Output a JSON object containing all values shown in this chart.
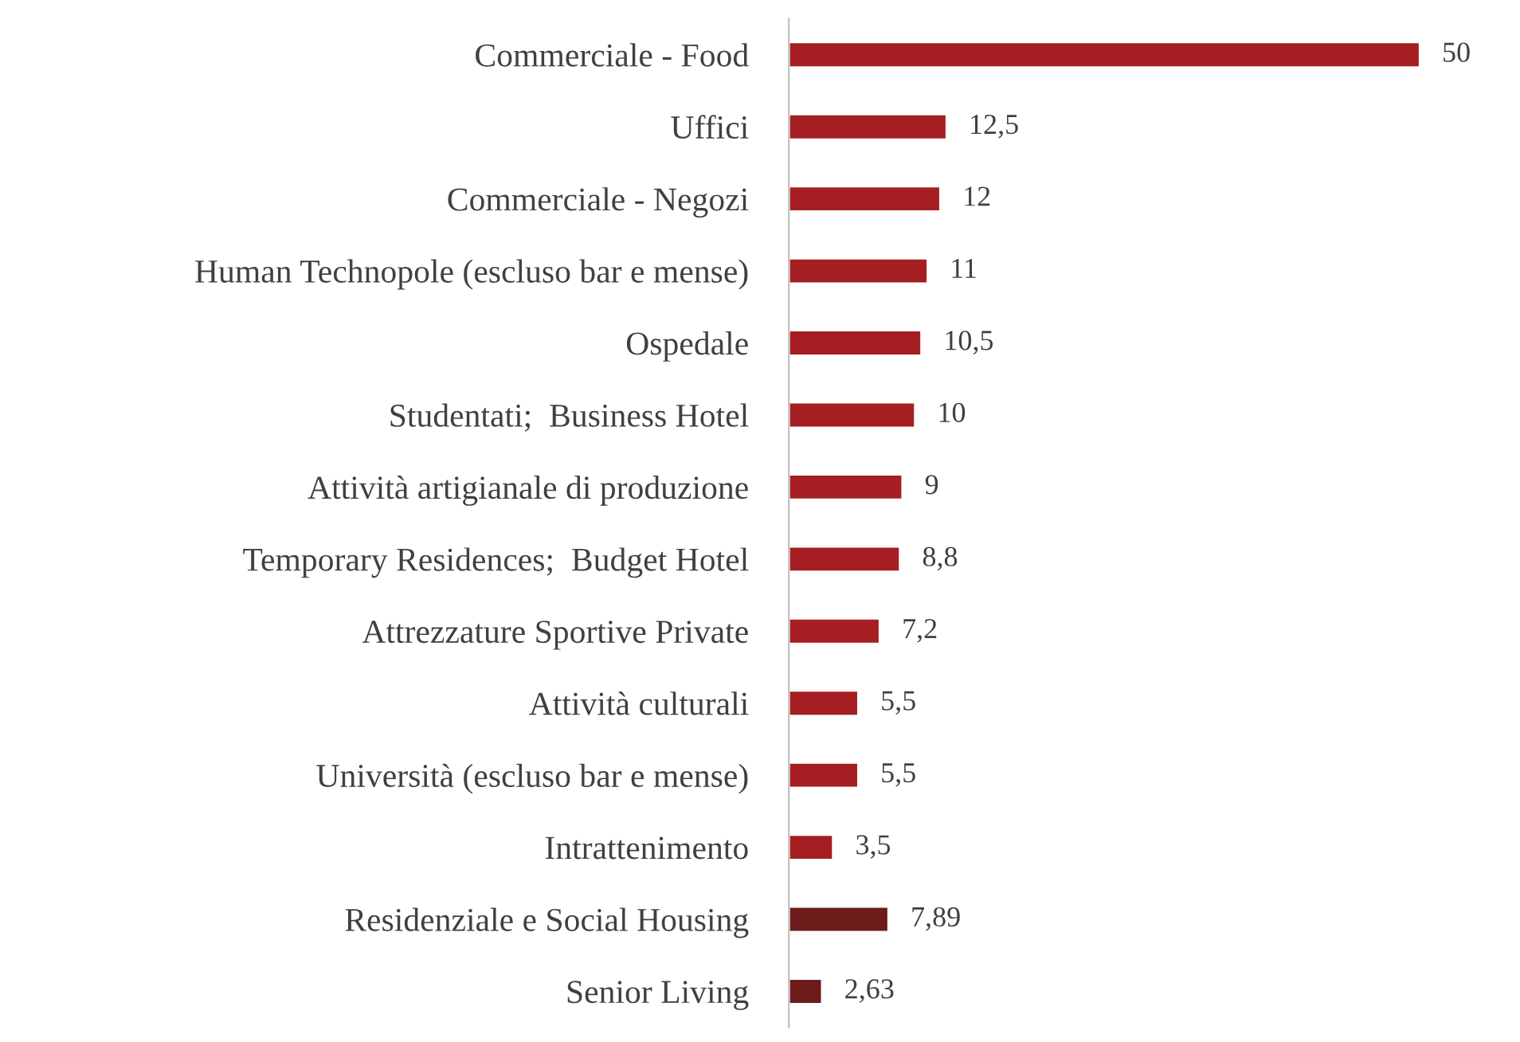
{
  "chart_data": {
    "type": "bar",
    "orientation": "horizontal",
    "categories": [
      "Commerciale - Food",
      "Uffici",
      "Commerciale - Negozi",
      "Human Technopole (escluso bar e mense)",
      "Ospedale",
      "Studentati;  Business Hotel",
      "Attività artigianale di produzione",
      "Temporary Residences;  Budget Hotel",
      "Attrezzature Sportive Private",
      "Attività culturali",
      "Università (escluso bar e mense)",
      "Intrattenimento",
      "Residenziale e Social Housing",
      "Senior Living"
    ],
    "values": [
      50,
      12.5,
      12,
      11,
      10.5,
      10,
      9,
      8.8,
      7.2,
      5.5,
      5.5,
      3.5,
      7.89,
      2.63
    ],
    "value_labels": [
      "50",
      "12,5",
      "12",
      "11",
      "10,5",
      "10",
      "9",
      "8,8",
      "7,2",
      "5,5",
      "5,5",
      "3,5",
      "7,89",
      "2,63"
    ],
    "colors": [
      "#a51e22",
      "#a51e22",
      "#a51e22",
      "#a51e22",
      "#a51e22",
      "#a51e22",
      "#a51e22",
      "#a51e22",
      "#a51e22",
      "#a51e22",
      "#a51e22",
      "#a51e22",
      "#6e1b1b",
      "#6e1b1b"
    ],
    "grid": false,
    "legend": false
  }
}
